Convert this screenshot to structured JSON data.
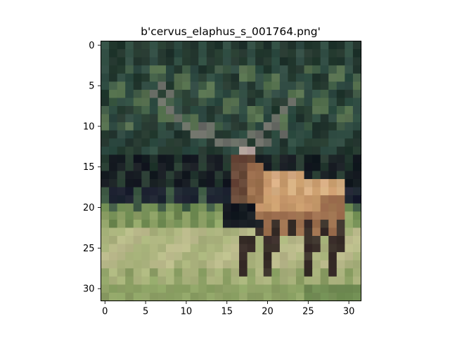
{
  "figure": {
    "title": "b'cervus_elaphus_s_001764.png'",
    "image": {
      "subject": "red deer stag in grass field with dark trees behind",
      "grid_size": 32,
      "palette": {
        "sky_dark": "#1f2a2a",
        "foliage_dark": "#24382f",
        "foliage_teal": "#2f4b42",
        "foliage_mid": "#3f5a45",
        "foliage_olive": "#56704f",
        "shadow": "#161c22",
        "treeline_shadow": "#1c2230",
        "grass_far": "#6f8a52",
        "grass_mid": "#8ea266",
        "grass_light": "#a9b27c",
        "grass_pale": "#b8b989",
        "deer_body": "#c89a6c",
        "deer_body_light": "#d6ad82",
        "deer_body_dark": "#9c6f4e",
        "deer_neck": "#6a4a3a",
        "deer_leg": "#3a2f2a",
        "antler": "#6b6f67",
        "deer_face": "#b7a6a0"
      }
    },
    "x_axis": {
      "ticks": [
        "0",
        "5",
        "10",
        "15",
        "20",
        "25",
        "30"
      ]
    },
    "y_axis": {
      "ticks": [
        "0",
        "5",
        "10",
        "15",
        "20",
        "25",
        "30"
      ]
    }
  }
}
